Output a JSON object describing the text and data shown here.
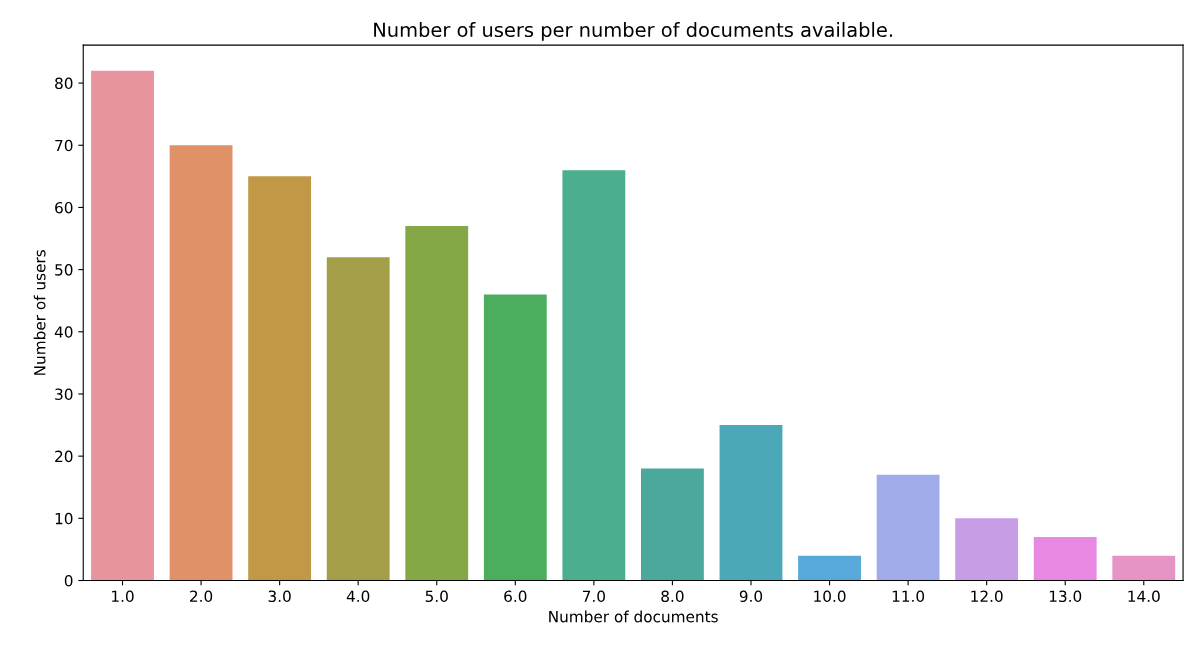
{
  "chart_data": {
    "type": "bar",
    "title": "Number of users per number of documents available.",
    "xlabel": "Number of documents",
    "ylabel": "Number of users",
    "categories": [
      "1.0",
      "2.0",
      "3.0",
      "4.0",
      "5.0",
      "6.0",
      "7.0",
      "8.0",
      "9.0",
      "10.0",
      "11.0",
      "12.0",
      "13.0",
      "14.0"
    ],
    "values": [
      82,
      70,
      65,
      52,
      57,
      46,
      66,
      18,
      25,
      4,
      17,
      10,
      7,
      4
    ],
    "colors": [
      "#e8949f",
      "#e09168",
      "#c09846",
      "#a59e48",
      "#86a746",
      "#4bad5d",
      "#4aae8f",
      "#4ba89c",
      "#4ba8b8",
      "#57a9da",
      "#a0acea",
      "#c79de6",
      "#e888e2",
      "#e694c6"
    ],
    "ylim": [
      0,
      86.1
    ],
    "yticks": [
      0,
      10,
      20,
      30,
      40,
      50,
      60,
      70,
      80
    ],
    "grid": false
  }
}
